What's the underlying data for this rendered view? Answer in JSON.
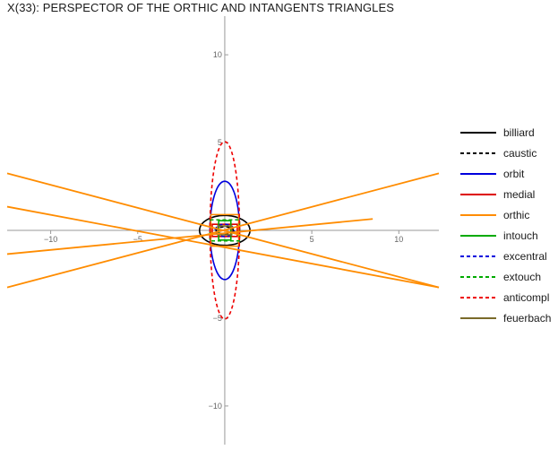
{
  "chart_data": {
    "type": "line",
    "title": "X(33): PERSPECTOR OF THE ORTHIC AND INTANGENTS TRIANGLES",
    "xlabel": "",
    "ylabel": "",
    "xlim": [
      -12.5,
      12.3
    ],
    "ylim": [
      -12.2,
      12.2
    ],
    "x_ticks": [
      -10,
      -5,
      5,
      10
    ],
    "y_ticks": [
      10,
      5,
      -5,
      -10
    ],
    "grid": false,
    "legend_position": "right",
    "series": [
      {
        "name": "billiard",
        "color": "#000000",
        "dash": "solid",
        "shape": "ellipse",
        "center": [
          0,
          0
        ],
        "radii": [
          1.45,
          0.85
        ]
      },
      {
        "name": "caustic",
        "color": "#000000",
        "dash": "dashed",
        "shape": "ellipse",
        "center": [
          0,
          0
        ],
        "radii": [
          0.5,
          0.2
        ]
      },
      {
        "name": "orbit",
        "color": "#0000dd",
        "dash": "solid",
        "shape": "ellipse",
        "center": [
          0,
          0
        ],
        "radii": [
          0.85,
          2.8
        ]
      },
      {
        "name": "medial",
        "color": "#dd0000",
        "dash": "solid",
        "shape": "polygon",
        "points": [
          [
            -0.72,
            0.35
          ],
          [
            0.72,
            0.35
          ],
          [
            0.72,
            -0.35
          ],
          [
            -0.72,
            -0.35
          ]
        ]
      },
      {
        "name": "orthic",
        "color": "#ff8c00",
        "dash": "solid",
        "shape": "polygon",
        "points": [
          [
            -0.8,
            0.9
          ],
          [
            0.8,
            0.9
          ],
          [
            0.8,
            -0.9
          ],
          [
            -0.8,
            -0.9
          ]
        ]
      },
      {
        "name": "intouch",
        "color": "#00aa00",
        "dash": "solid",
        "shape": "polygon",
        "points": [
          [
            -0.35,
            0.55
          ],
          [
            0.35,
            0.55
          ],
          [
            0.35,
            -0.55
          ],
          [
            -0.35,
            -0.55
          ]
        ]
      },
      {
        "name": "excentral",
        "color": "#0000dd",
        "dash": "dashed",
        "shape": "ellipse",
        "center": [
          0,
          0
        ],
        "radii": [
          0.55,
          0.35
        ]
      },
      {
        "name": "extouch",
        "color": "#00aa00",
        "dash": "dashed",
        "shape": "polygon",
        "points": [
          [
            -0.85,
            0.6
          ],
          [
            0.85,
            0.6
          ],
          [
            0.85,
            -0.6
          ],
          [
            -0.85,
            -0.6
          ]
        ]
      },
      {
        "name": "anticompl",
        "color": "#ee0000",
        "dash": "dashed",
        "shape": "ellipse",
        "center": [
          0,
          0
        ],
        "radii": [
          0.85,
          5.05
        ]
      },
      {
        "name": "feuerbach",
        "color": "#7a6a2a",
        "dash": "solid",
        "shape": "polygon",
        "points": [
          [
            -0.4,
            0.25
          ],
          [
            0.4,
            0.25
          ],
          [
            0.4,
            -0.25
          ],
          [
            -0.4,
            -0.25
          ]
        ]
      }
    ],
    "orthic_lines": [
      [
        [
          -12.5,
          3.25
        ],
        [
          12.3,
          -3.25
        ]
      ],
      [
        [
          -12.5,
          -3.25
        ],
        [
          12.3,
          3.25
        ]
      ],
      [
        [
          -12.5,
          1.35
        ],
        [
          12.3,
          -3.25
        ]
      ],
      [
        [
          -12.5,
          -1.35
        ],
        [
          8.5,
          0.65
        ]
      ]
    ]
  }
}
